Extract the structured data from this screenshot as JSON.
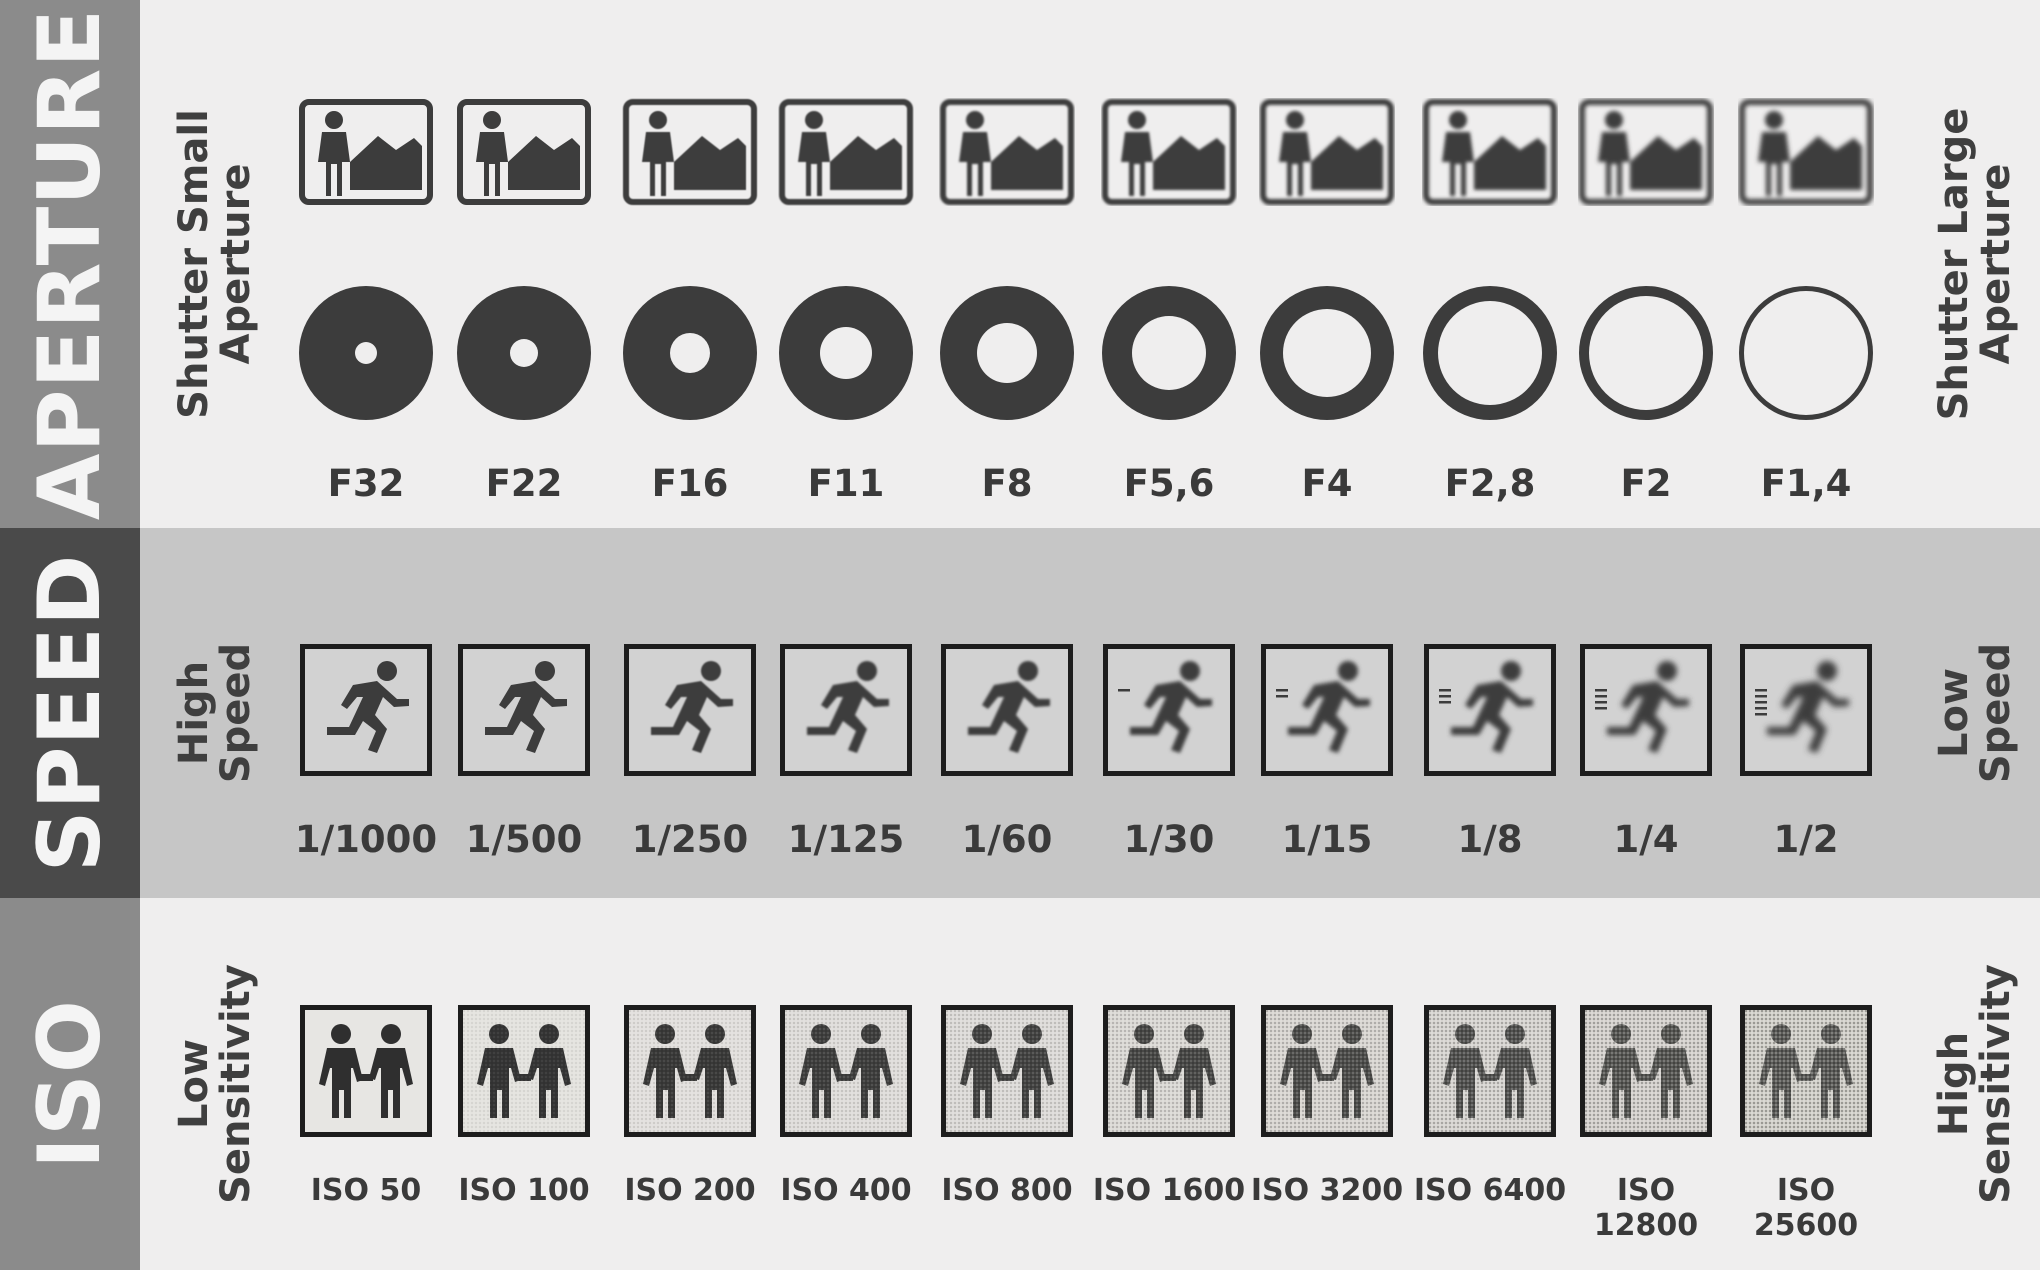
{
  "aperture": {
    "title": "APERTURE",
    "left_label": [
      "Shutter Small",
      "Aperture"
    ],
    "right_label": [
      "Shutter Large",
      "Aperture"
    ],
    "stops": [
      "F32",
      "F22",
      "F16",
      "F11",
      "F8",
      "F5,6",
      "F4",
      "F2,8",
      "F2",
      "F1,4"
    ],
    "icon": "landscape-person-icon"
  },
  "speed": {
    "title": "SPEED",
    "left_label": [
      "High",
      "Speed"
    ],
    "right_label": [
      "Low",
      "Speed"
    ],
    "stops": [
      "1/1000",
      "1/500",
      "1/250",
      "1/125",
      "1/60",
      "1/30",
      "1/15",
      "1/8",
      "1/4",
      "1/2"
    ],
    "icon": "running-person-icon"
  },
  "iso": {
    "title": "ISO",
    "left_label": [
      "Low",
      "Sensitivity"
    ],
    "right_label": [
      "High",
      "Sensitivity"
    ],
    "stops": [
      "ISO 50",
      "ISO 100",
      "ISO 200",
      "ISO 400",
      "ISO 800",
      "ISO 1600",
      "ISO 3200",
      "ISO 6400",
      "ISO 12800",
      "ISO 25600"
    ],
    "icon": "two-people-icon"
  },
  "colors": {
    "dark": "#3c3c3c",
    "tab_light": "#8b8b8b",
    "tab_dark": "#4a4a4a"
  }
}
